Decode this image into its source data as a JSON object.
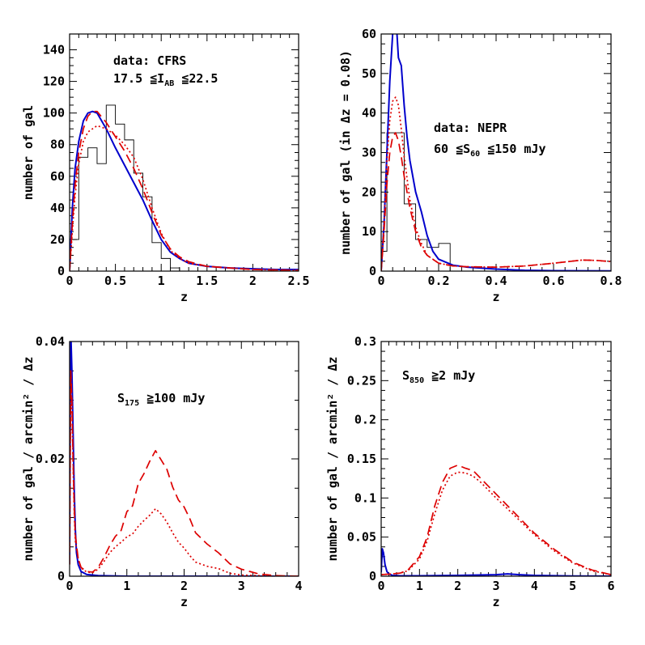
{
  "chart_data": [
    {
      "type": "line",
      "xlabel": "z",
      "ylabel": "number of gal",
      "xlim": [
        0,
        2.5
      ],
      "ylim": [
        0,
        150
      ],
      "xticks": [
        0,
        0.5,
        1,
        1.5,
        2,
        2.5
      ],
      "yticks": [
        0,
        20,
        40,
        60,
        80,
        100,
        120,
        140
      ],
      "annotation": {
        "line1": "data: CFRS",
        "line2_pre": "17.5 ≦I",
        "line2_sub": "AB",
        "line2_post": " ≦22.5"
      },
      "histogram": {
        "edges": [
          0,
          0.1,
          0.2,
          0.3,
          0.4,
          0.5,
          0.6,
          0.7,
          0.8,
          0.9,
          1.0,
          1.1,
          1.2,
          1.3
        ],
        "counts": [
          20,
          72,
          78,
          68,
          105,
          93,
          83,
          62,
          47,
          18,
          8,
          2,
          0
        ]
      },
      "series": [
        {
          "color": "#0000cc",
          "dash": "solid",
          "x": [
            0,
            0.03,
            0.06,
            0.1,
            0.15,
            0.2,
            0.25,
            0.3,
            0.4,
            0.5,
            0.6,
            0.7,
            0.8,
            0.9,
            1.0,
            1.1,
            1.2,
            1.3,
            1.5,
            1.75,
            2.0,
            2.25,
            2.5
          ],
          "y": [
            0,
            40,
            65,
            82,
            95,
            100,
            101,
            100,
            90,
            78,
            67,
            56,
            45,
            32,
            20,
            12,
            8,
            5,
            3,
            2,
            1.5,
            1,
            1
          ]
        },
        {
          "color": "#dd0000",
          "dash": "dashed",
          "x": [
            0,
            0.03,
            0.06,
            0.1,
            0.15,
            0.2,
            0.25,
            0.3,
            0.4,
            0.5,
            0.6,
            0.7,
            0.8,
            0.9,
            1.0,
            1.1,
            1.2,
            1.3,
            1.5,
            1.75,
            2.0,
            2.5
          ],
          "y": [
            0,
            30,
            55,
            75,
            90,
            98,
            101,
            101,
            94,
            85,
            76,
            65,
            52,
            37,
            23,
            14,
            9,
            6,
            3,
            2,
            1,
            0.5
          ]
        },
        {
          "color": "#dd0000",
          "dash": "dotted",
          "x": [
            0,
            0.03,
            0.06,
            0.1,
            0.15,
            0.2,
            0.25,
            0.3,
            0.4,
            0.5,
            0.6,
            0.7,
            0.8,
            0.9,
            1.0,
            1.1,
            1.2,
            1.3,
            1.5,
            1.75,
            2.0,
            2.5
          ],
          "y": [
            0,
            25,
            48,
            68,
            82,
            88,
            90,
            92,
            90,
            86,
            80,
            72,
            58,
            40,
            24,
            13,
            8,
            5,
            3,
            2,
            1,
            0.5
          ]
        }
      ]
    },
    {
      "type": "line",
      "xlabel": "z",
      "ylabel_pre": "number of gal (in ",
      "ylabel_delta": "Δz",
      "ylabel_post": " = 0.08)",
      "xlim": [
        0,
        0.8
      ],
      "ylim": [
        0,
        60
      ],
      "xticks": [
        0,
        0.2,
        0.4,
        0.6,
        0.8
      ],
      "yticks": [
        0,
        10,
        20,
        30,
        40,
        50,
        60
      ],
      "annotation": {
        "line1": "data: NEPR",
        "line2_pre": "60 ≦S",
        "line2_sub": "60",
        "line2_post": " ≦150 mJy"
      },
      "histogram": {
        "edges": [
          0,
          0.02,
          0.08,
          0.12,
          0.16,
          0.2,
          0.24,
          0.28
        ],
        "counts": [
          5,
          35,
          17,
          8,
          6,
          7,
          0
        ]
      },
      "series": [
        {
          "color": "#0000cc",
          "dash": "solid",
          "x": [
            0,
            0.01,
            0.02,
            0.03,
            0.04,
            0.05,
            0.055,
            0.06,
            0.07,
            0.08,
            0.09,
            0.1,
            0.12,
            0.14,
            0.16,
            0.18,
            0.2,
            0.25,
            0.3,
            0.4,
            0.5,
            0.6,
            0.8
          ],
          "y": [
            0,
            12,
            30,
            48,
            60,
            63,
            60,
            54,
            52,
            42,
            34,
            28,
            20,
            15,
            9,
            5,
            3,
            1.5,
            1,
            0.5,
            0.2,
            0.1,
            0.05
          ]
        },
        {
          "color": "#dd0000",
          "dash": "dashed",
          "x": [
            0,
            0.01,
            0.02,
            0.03,
            0.04,
            0.05,
            0.06,
            0.07,
            0.08,
            0.1,
            0.12,
            0.14,
            0.16,
            0.2,
            0.25,
            0.3,
            0.4,
            0.5,
            0.6,
            0.7,
            0.75,
            0.8
          ],
          "y": [
            0,
            10,
            22,
            30,
            34,
            35,
            33,
            29,
            24,
            16,
            10,
            6,
            4,
            2,
            1.3,
            1.1,
            1.0,
            1.3,
            2.0,
            2.8,
            2.7,
            2.4
          ]
        },
        {
          "color": "#dd0000",
          "dash": "dotted",
          "x": [
            0,
            0.01,
            0.02,
            0.03,
            0.04,
            0.05,
            0.06,
            0.07,
            0.08,
            0.1,
            0.12,
            0.14,
            0.16,
            0.2,
            0.25,
            0.3,
            0.4,
            0.5,
            0.6,
            0.7,
            0.75,
            0.8
          ],
          "y": [
            0,
            12,
            28,
            38,
            43,
            44,
            42,
            36,
            29,
            18,
            11,
            7,
            4,
            2,
            1.3,
            1.1,
            1.0,
            1.3,
            2.0,
            2.8,
            2.7,
            2.4
          ]
        }
      ]
    },
    {
      "type": "line",
      "xlabel": "z",
      "ylabel": "number of gal / arcmin² / Δz",
      "xlim": [
        0,
        4
      ],
      "ylim": [
        0,
        0.04
      ],
      "xticks": [
        0,
        1,
        2,
        3,
        4
      ],
      "yticks": [
        0,
        0.02,
        0.04
      ],
      "yticklabels": [
        "0",
        "0.02",
        "0.04"
      ],
      "annotation": {
        "line1": "",
        "line2_pre": "S",
        "line2_sub": "175",
        "line2_post": " ≧100 mJy"
      },
      "series": [
        {
          "color": "#0000cc",
          "dash": "solid",
          "x": [
            0,
            0.01,
            0.02,
            0.04,
            0.06,
            0.08,
            0.1,
            0.12,
            0.15,
            0.2,
            0.3,
            0.5,
            1,
            4
          ],
          "y": [
            0.002,
            0.03,
            0.042,
            0.035,
            0.025,
            0.015,
            0.008,
            0.004,
            0.002,
            0.0008,
            0.0003,
            0.0001,
            0.0,
            0.0
          ]
        },
        {
          "color": "#dd0000",
          "dash": "dashed",
          "x": [
            0,
            0.02,
            0.04,
            0.06,
            0.08,
            0.1,
            0.15,
            0.2,
            0.3,
            0.4,
            0.5,
            0.6,
            0.7,
            0.8,
            0.9,
            1.0,
            1.1,
            1.2,
            1.3,
            1.4,
            1.5,
            1.6,
            1.7,
            1.8,
            1.9,
            2.0,
            2.1,
            2.2,
            2.4,
            2.6,
            2.8,
            3.0,
            3.3,
            3.6,
            4.0
          ],
          "y": [
            0.002,
            0.035,
            0.03,
            0.02,
            0.012,
            0.007,
            0.003,
            0.0015,
            0.0008,
            0.0007,
            0.0015,
            0.0032,
            0.0052,
            0.0068,
            0.0078,
            0.011,
            0.012,
            0.0158,
            0.0175,
            0.0196,
            0.0214,
            0.0198,
            0.0182,
            0.0152,
            0.013,
            0.0118,
            0.0098,
            0.0074,
            0.0055,
            0.004,
            0.0021,
            0.0012,
            0.0004,
            0.0001,
            0.0
          ]
        },
        {
          "color": "#dd0000",
          "dash": "dotted",
          "x": [
            0,
            0.02,
            0.04,
            0.06,
            0.08,
            0.1,
            0.15,
            0.2,
            0.3,
            0.4,
            0.5,
            0.6,
            0.7,
            0.8,
            0.9,
            1.0,
            1.1,
            1.2,
            1.3,
            1.4,
            1.5,
            1.6,
            1.7,
            1.8,
            1.9,
            2.0,
            2.1,
            2.2,
            2.4,
            2.6,
            2.8,
            3.0,
            3.3,
            3.6,
            4.0
          ],
          "y": [
            0.002,
            0.034,
            0.029,
            0.019,
            0.011,
            0.006,
            0.003,
            0.0014,
            0.0007,
            0.0006,
            0.0012,
            0.0025,
            0.004,
            0.005,
            0.0058,
            0.0067,
            0.0072,
            0.0085,
            0.0095,
            0.0104,
            0.0115,
            0.0106,
            0.0092,
            0.0074,
            0.0058,
            0.0048,
            0.0035,
            0.0024,
            0.0017,
            0.0013,
            0.0005,
            0.0002,
            0.0001,
            0.0,
            0.0
          ]
        }
      ]
    },
    {
      "type": "line",
      "xlabel": "z",
      "ylabel": "number of gal / arcmin² / Δz",
      "xlim": [
        0,
        6
      ],
      "ylim": [
        0,
        0.3
      ],
      "xticks": [
        0,
        1,
        2,
        3,
        4,
        5,
        6
      ],
      "yticks": [
        0,
        0.05,
        0.1,
        0.15,
        0.2,
        0.25,
        0.3
      ],
      "yticklabels": [
        "0",
        "0.05",
        "0.1",
        "0.15",
        "0.2",
        "0.25",
        "0.3"
      ],
      "annotation": {
        "line1": "",
        "line2_pre": "S",
        "line2_sub": "850",
        "line2_post": " ≧2 mJy"
      },
      "series": [
        {
          "color": "#0000cc",
          "dash": "solid",
          "x": [
            0,
            0.03,
            0.06,
            0.1,
            0.15,
            0.2,
            0.3,
            0.5,
            1,
            2,
            3,
            3.3,
            3.6,
            4,
            5,
            6
          ],
          "y": [
            0.005,
            0.035,
            0.03,
            0.015,
            0.006,
            0.003,
            0.001,
            0.0005,
            0.0005,
            0.001,
            0.002,
            0.003,
            0.002,
            0.001,
            0.0003,
            0.0001
          ]
        },
        {
          "color": "#dd0000",
          "dash": "dashed",
          "x": [
            0,
            0.3,
            0.5,
            0.7,
            1.0,
            1.2,
            1.4,
            1.6,
            1.8,
            2.0,
            2.2,
            2.4,
            2.6,
            2.8,
            3.0,
            3.3,
            3.6,
            4.0,
            4.5,
            5.0,
            5.5,
            6.0
          ],
          "y": [
            0.002,
            0.003,
            0.004,
            0.008,
            0.025,
            0.05,
            0.09,
            0.12,
            0.138,
            0.142,
            0.138,
            0.135,
            0.125,
            0.115,
            0.105,
            0.09,
            0.075,
            0.055,
            0.035,
            0.018,
            0.008,
            0.002
          ]
        },
        {
          "color": "#dd0000",
          "dash": "dotted",
          "x": [
            0,
            0.3,
            0.5,
            0.7,
            1.0,
            1.2,
            1.4,
            1.6,
            1.8,
            2.0,
            2.2,
            2.4,
            2.6,
            2.8,
            3.0,
            3.3,
            3.6,
            4.0,
            4.5,
            5.0,
            5.5,
            6.0
          ],
          "y": [
            0.002,
            0.003,
            0.004,
            0.007,
            0.022,
            0.045,
            0.08,
            0.11,
            0.128,
            0.133,
            0.132,
            0.128,
            0.12,
            0.11,
            0.1,
            0.086,
            0.072,
            0.053,
            0.033,
            0.017,
            0.007,
            0.002
          ]
        }
      ]
    }
  ]
}
